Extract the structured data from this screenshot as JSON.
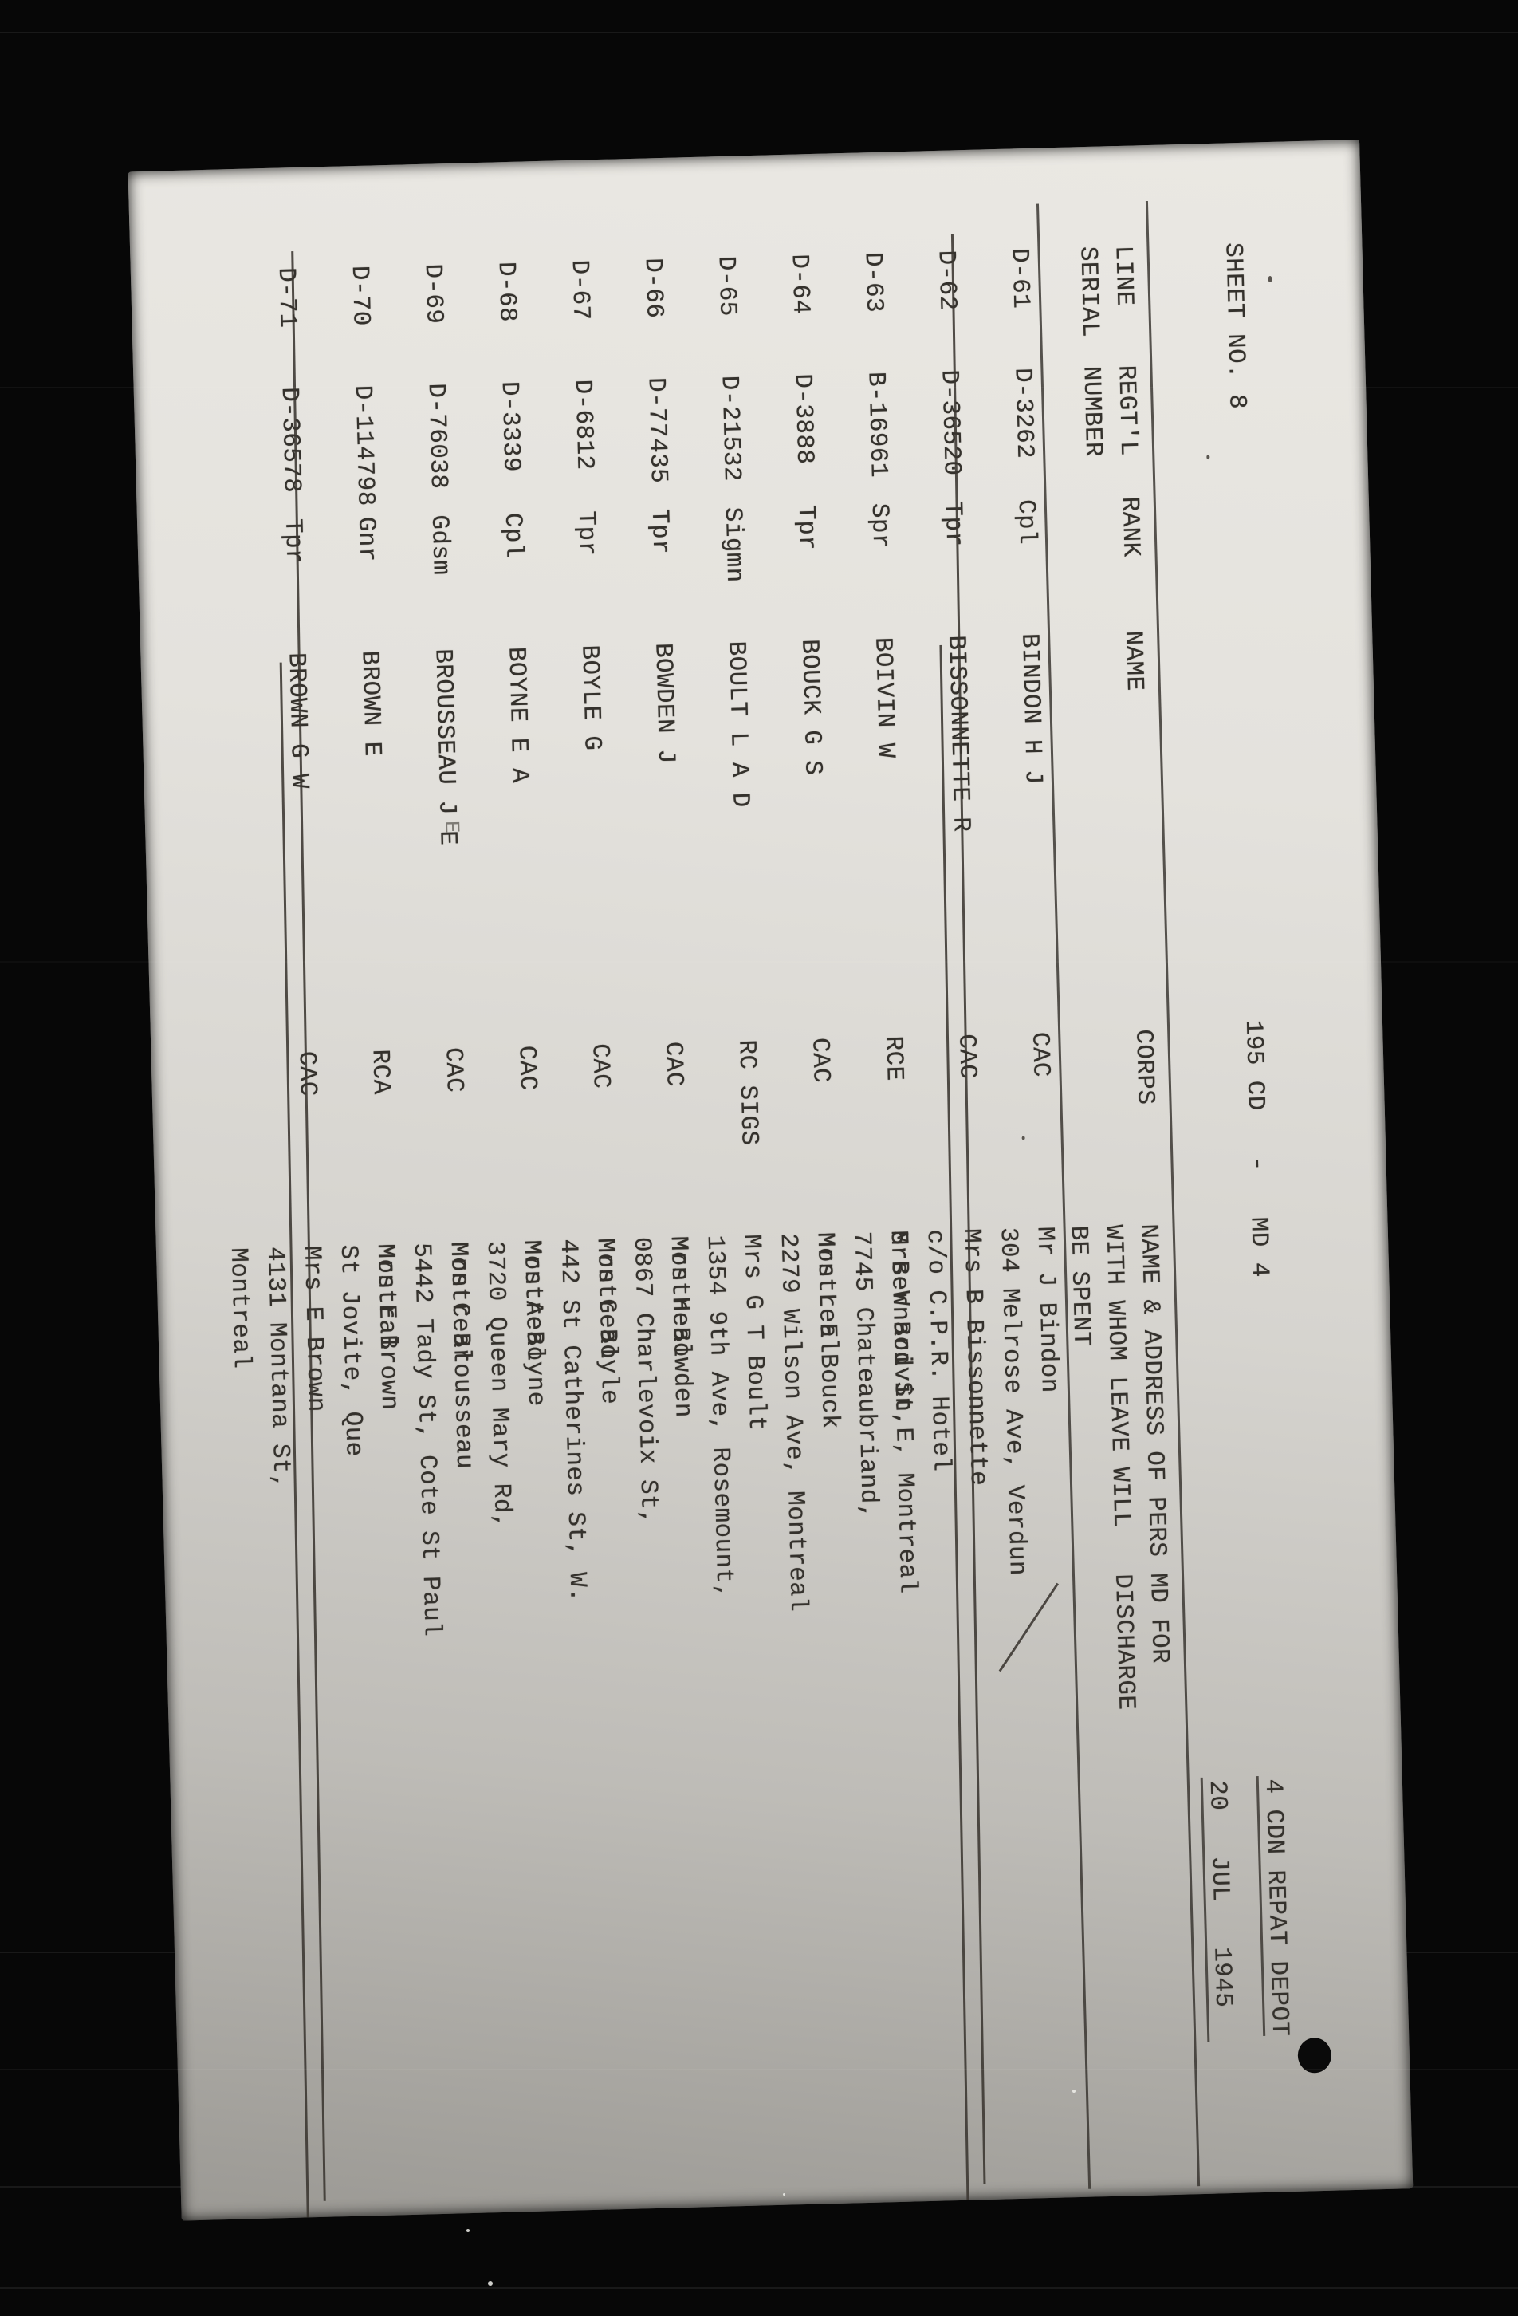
{
  "colors": {
    "film_background": "#070707",
    "page_light": "#eae8e3",
    "page_dark": "#9b9994",
    "ink": "#34312c"
  },
  "header": {
    "sheet_no": "SHEET NO. 8",
    "center_title": "195 CD   -   MD 4",
    "unit_title": "4 CDN REPAT DEPOT",
    "date_line": "20   JUL   1945"
  },
  "table": {
    "columns": {
      "serial": [
        "LINE",
        "SERIAL"
      ],
      "number": [
        "REGT'L",
        "NUMBER"
      ],
      "rank": "RANK",
      "name": "NAME",
      "corps": "CORPS",
      "address": [
        "NAME & ADDRESS OF PERS",
        "WITH WHOM LEAVE WILL",
        "BE SPENT"
      ],
      "md": [
        "MD FOR",
        "DISCHARGE"
      ]
    },
    "rows": [
      {
        "serial": "D-61",
        "number": "D-3262",
        "rank": "Cpl",
        "name": "BINDON H J",
        "corps": "CAC",
        "address": [
          "Mr J Bindon",
          "304 Melrose Ave, Verdun"
        ],
        "struck": false
      },
      {
        "serial": "D-62",
        "number": "D-36520",
        "rank": "Tpr",
        "name": "BISSONNETTE R",
        "corps": "CAC",
        "address": [
          "Mrs B Bissonnette",
          "c/o C.P.R. Hotel",
          "5 Bernard St,E, Montreal"
        ],
        "struck": true,
        "diagonal": true
      },
      {
        "serial": "D-63",
        "number": "B-16961",
        "rank": "Spr",
        "name": "BOIVIN W",
        "corps": "RCE",
        "address": [
          "Mrs W Boivin",
          "7745 Chateaubriand,",
          "Montreal"
        ],
        "struck": false
      },
      {
        "serial": "D-64",
        "number": "D-3888",
        "rank": "Tpr",
        "name": "BOUCK G S",
        "corps": "CAC",
        "address": [
          "Mrs L E Bouck",
          "2279 Wilson Ave, Montreal"
        ],
        "struck": false
      },
      {
        "serial": "D-65",
        "number": "D-21532",
        "rank": "Sigmn",
        "name": "BOULT L A D",
        "corps": "RC SIGS",
        "address": [
          "Mrs G T Boult",
          "1354 9th Ave, Rosemount,",
          "Montreal"
        ],
        "struck": false
      },
      {
        "serial": "D-66",
        "number": "D-77435",
        "rank": "Tpr",
        "name": "BOWDEN J",
        "corps": "CAC",
        "address": [
          "Mrs H Bowden",
          "0867 Charlevoix St,",
          "Montreal"
        ],
        "struck": false
      },
      {
        "serial": "D-67",
        "number": "D-6812",
        "rank": "Tpr",
        "name": "BOYLE G",
        "corps": "CAC",
        "address": [
          "Mrs G Boyle",
          "442 St Catherines St, W.",
          "Montreal"
        ],
        "struck": false
      },
      {
        "serial": "D-68",
        "number": "D-3339",
        "rank": "Cpl",
        "name": "BOYNE E A",
        "corps": "CAC",
        "address": [
          "Mrs A Boyne",
          "3720 Queen Mary Rd,",
          "Montreal"
        ],
        "struck": false
      },
      {
        "serial": "D-69",
        "number": "D-76038",
        "rank": "Gdsm",
        "name": "BROUSSEAU J E",
        "corps": "CAC",
        "address": [
          "Mrs C Brousseau",
          "5442 Tady St, Cote St Paul",
          "Montral"
        ],
        "struck": false
      },
      {
        "serial": "D-70",
        "number": "D-114798",
        "rank": "Gnr",
        "name": "BROWN E",
        "corps": "RCA",
        "address": [
          "Mrs E Brown",
          "St Jovite, Que"
        ],
        "struck": false
      },
      {
        "serial": "D-71",
        "number": "D-36578",
        "rank": "Tpr",
        "name": "BROWN G W",
        "corps": "CAC",
        "address": [
          "Mrs E Brown",
          "4131 Montana St,",
          "Montreal"
        ],
        "struck": true
      }
    ]
  },
  "stray_mark": "E"
}
